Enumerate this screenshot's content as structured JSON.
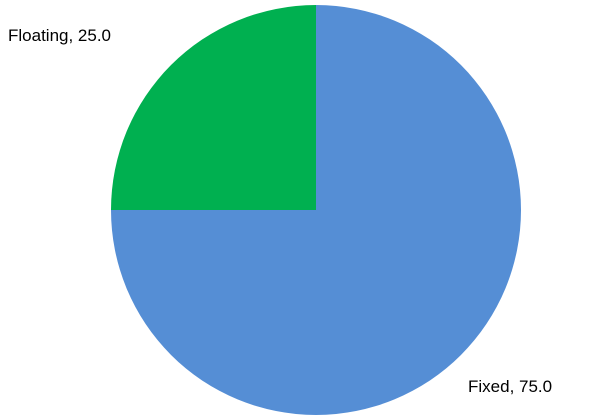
{
  "chart_data": {
    "type": "pie",
    "categories": [
      "Fixed",
      "Floating"
    ],
    "values": [
      75.0,
      25.0
    ],
    "colors": [
      "#558ED5",
      "#00B050"
    ],
    "data_labels": [
      "Fixed,  75.0",
      "Floating,  25.0"
    ],
    "legend": "none",
    "start_angle": "12 o'clock",
    "direction": "clockwise"
  }
}
